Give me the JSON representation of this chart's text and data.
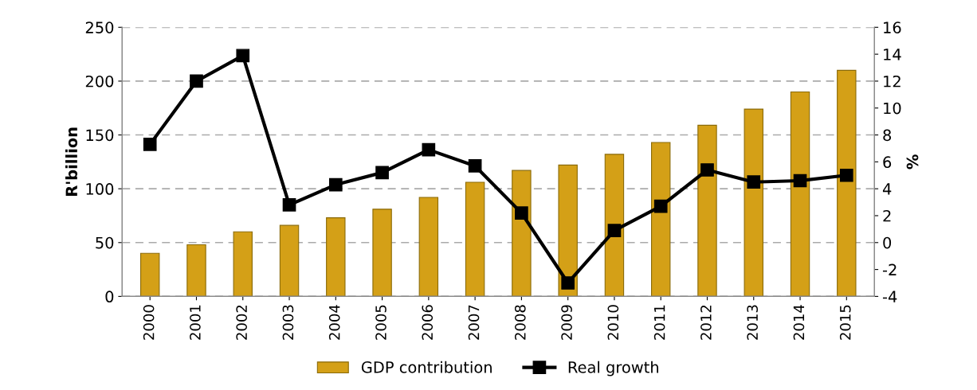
{
  "chart_data": {
    "type": "bar",
    "ylabel": "R'billion",
    "y2label": "%",
    "categories": [
      "2000",
      "2001",
      "2002",
      "2003",
      "2004",
      "2005",
      "2006",
      "2007",
      "2008",
      "2009",
      "2010",
      "2011",
      "2012",
      "2013",
      "2014",
      "2015"
    ],
    "series": [
      {
        "name": "GDP contribution",
        "color": "#d4a017",
        "values": [
          40,
          48,
          60,
          66,
          73,
          81,
          92,
          106,
          117,
          122,
          132,
          143,
          159,
          174,
          190,
          210
        ]
      },
      {
        "name": "Real growth",
        "type": "line",
        "axis": "y2",
        "color": "#000000",
        "marker": "square",
        "values": [
          7.3,
          12.0,
          13.9,
          2.8,
          4.3,
          5.2,
          6.9,
          5.7,
          2.2,
          -3.0,
          0.9,
          2.7,
          5.4,
          4.5,
          4.6,
          5.0
        ]
      }
    ],
    "ylim": [
      0,
      250
    ],
    "yticks": [
      0,
      50,
      100,
      150,
      200,
      250
    ],
    "y2lim": [
      -4,
      16
    ],
    "y2ticks": [
      -4,
      -2,
      0,
      2,
      4,
      6,
      8,
      10,
      12,
      14,
      16
    ],
    "grid": "y",
    "legend": "bottom"
  }
}
